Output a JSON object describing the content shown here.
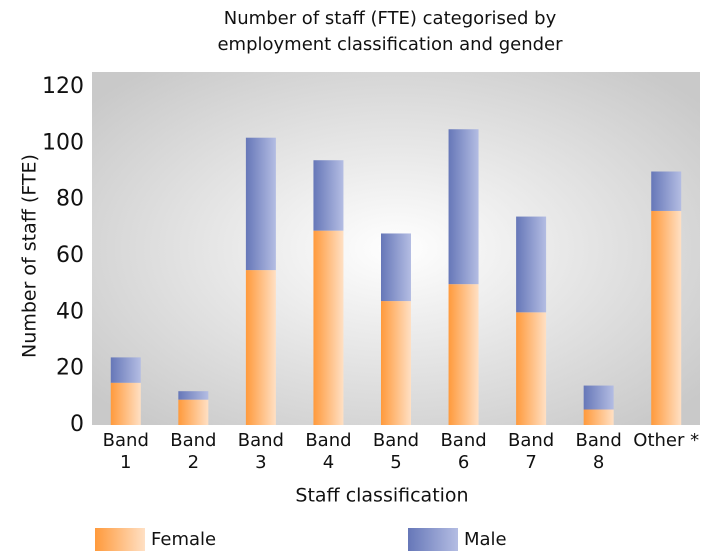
{
  "chart_data": {
    "type": "stacked-bar",
    "title": "Number of staff (FTE) categorised by\nemployment classification and gender",
    "xlabel": "Staff classification",
    "ylabel": "Number of staff (FTE)",
    "categories": [
      "Band 1",
      "Band 2",
      "Band 3",
      "Band 4",
      "Band 5",
      "Band 6",
      "Band 7",
      "Band 8",
      "Other *"
    ],
    "series": [
      {
        "name": "Female",
        "color": "#ff9a3c",
        "values": [
          15,
          9,
          55,
          69,
          44,
          50,
          40,
          5.5,
          76
        ]
      },
      {
        "name": "Male",
        "color": "#6677b8",
        "values": [
          9,
          3,
          47,
          25,
          24,
          55,
          34,
          8.5,
          14
        ]
      }
    ],
    "ylim": [
      0,
      120
    ],
    "yticks": [
      0,
      20,
      40,
      60,
      80,
      100,
      120
    ],
    "legend": "bottom"
  }
}
